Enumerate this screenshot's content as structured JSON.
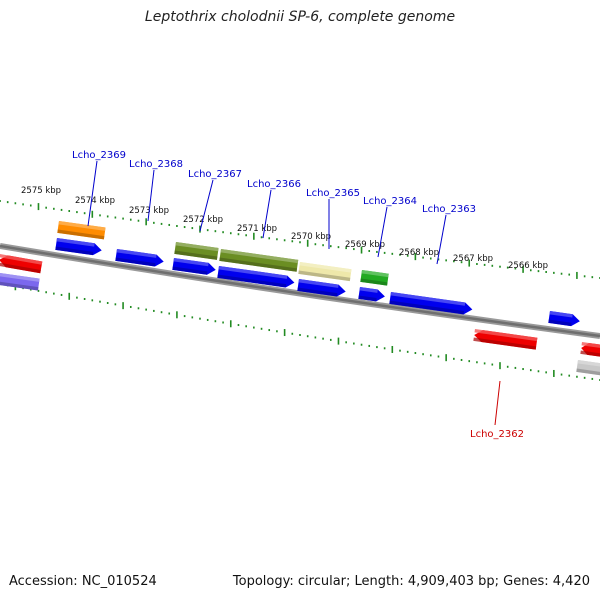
{
  "title": "Leptothrix cholodnii SP-6, complete genome",
  "footer": {
    "accession": "Accession: NC_010524",
    "topology": "Topology: circular; Length: 4,909,403 bp; Genes: 4,420"
  },
  "scale_labels": [
    "2575 kbp",
    "2574 kbp",
    "2573 kbp",
    "2572 kbp",
    "2571 kbp",
    "2570 kbp",
    "2569 kbp",
    "2568 kbp",
    "2567 kbp",
    "2566 kbp"
  ],
  "gene_labels": [
    {
      "text": "Lcho_2369",
      "color": "#0000cc"
    },
    {
      "text": "Lcho_2368",
      "color": "#0000cc"
    },
    {
      "text": "Lcho_2367",
      "color": "#0000cc"
    },
    {
      "text": "Lcho_2366",
      "color": "#0000cc"
    },
    {
      "text": "Lcho_2365",
      "color": "#0000cc"
    },
    {
      "text": "Lcho_2364",
      "color": "#0000cc"
    },
    {
      "text": "Lcho_2363",
      "color": "#0000cc"
    },
    {
      "text": "Lcho_2362",
      "color": "#cc0000"
    }
  ],
  "colors": {
    "blue": "#0000ee",
    "red": "#ee0000",
    "orange": "#ff8c00",
    "olive": "#6b8e23",
    "khaki": "#eee8aa",
    "green": "#22aa22",
    "purple": "#7b68ee",
    "grey": "#c8c8c8",
    "tick": "#228b22",
    "backbone": "#888888"
  }
}
